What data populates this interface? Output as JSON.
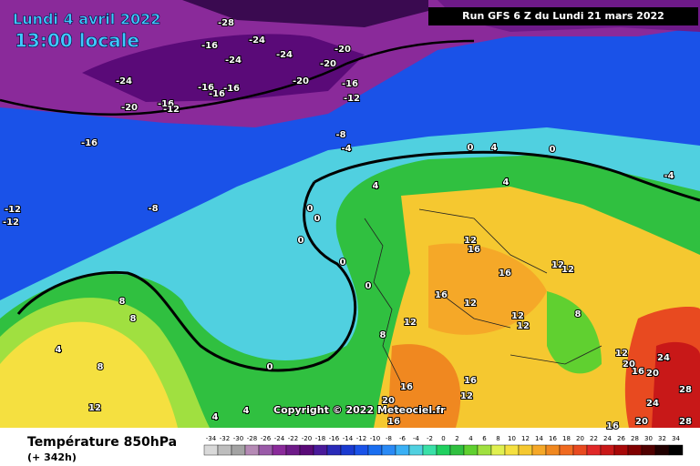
{
  "header": {
    "date": "Lundi 4 avril 2022",
    "time": "13:00 locale",
    "run": "Run GFS 6 Z du Lundi 21 mars 2022"
  },
  "copyright": "Copyright © 2022 Meteociel.fr",
  "footer": {
    "title": "Température 850hPa",
    "lead": "(+ 342h)"
  },
  "map": {
    "contour_labels": [
      -28,
      -24,
      -16,
      -24,
      -20,
      -24,
      -20,
      -24,
      -20,
      -16,
      -16,
      -16,
      -16,
      -20,
      -16,
      -12,
      -12,
      -8,
      -16,
      -4,
      -12,
      -12,
      -8,
      0,
      4,
      0,
      4,
      0,
      0,
      0,
      0,
      0,
      0,
      4,
      -4,
      12,
      16,
      16,
      12,
      12,
      16,
      12,
      8,
      12,
      20,
      24,
      16,
      20,
      24,
      28,
      28,
      20,
      16,
      12,
      8,
      4,
      8,
      8,
      4,
      4,
      16,
      20,
      16,
      16,
      12,
      12,
      12,
      12,
      8
    ]
  },
  "legend": {
    "values": [
      -34,
      -32,
      -30,
      -28,
      -26,
      -24,
      -22,
      -20,
      -18,
      -16,
      -14,
      -12,
      -10,
      -8,
      -6,
      -4,
      -2,
      0,
      2,
      4,
      6,
      8,
      10,
      12,
      14,
      16,
      18,
      20,
      22,
      24,
      26,
      28,
      30,
      32,
      34
    ],
    "colors": [
      "#d9d9d9",
      "#bdbdbd",
      "#a3a3a3",
      "#b58ab5",
      "#9a5aa8",
      "#8a2a9a",
      "#6e1a88",
      "#5a0a78",
      "#4a1a9a",
      "#2a2ab8",
      "#1a3ad0",
      "#1a52e8",
      "#1a6ef0",
      "#2a8af5",
      "#3ab0f5",
      "#50d0e0",
      "#3ae0a8",
      "#20d060",
      "#30c040",
      "#60d030",
      "#a0e040",
      "#e0f050",
      "#f5e040",
      "#f5c830",
      "#f5a828",
      "#f08820",
      "#f06a20",
      "#e84a20",
      "#e02828",
      "#c81818",
      "#a80808",
      "#800000",
      "#500000",
      "#200000",
      "#000000"
    ]
  }
}
